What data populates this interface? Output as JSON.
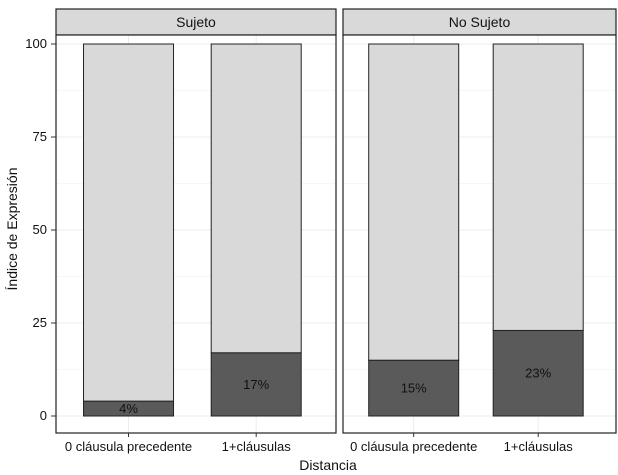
{
  "chart_data": {
    "type": "bar",
    "stacked": true,
    "facets": [
      "Sujeto",
      "No Sujeto"
    ],
    "categories": [
      "0 cláusula precedente",
      "1+cláusulas"
    ],
    "series": [
      {
        "values": {
          "Sujeto": [
            4,
            17
          ],
          "No Sujeto": [
            15,
            23
          ]
        },
        "color": "#5a5a5a"
      },
      {
        "values": {
          "Sujeto": [
            96,
            83
          ],
          "No Sujeto": [
            85,
            77
          ]
        },
        "color": "#d9d9d9"
      }
    ],
    "data_labels": {
      "Sujeto": [
        "4%",
        "17%"
      ],
      "No Sujeto": [
        "15%",
        "23%"
      ]
    },
    "xlabel": "Distancia",
    "ylabel": "Índice de Expresión",
    "ylim": [
      0,
      100
    ],
    "yticks": [
      "0",
      "25",
      "50",
      "75",
      "100"
    ],
    "grid": true,
    "legend": "none"
  }
}
